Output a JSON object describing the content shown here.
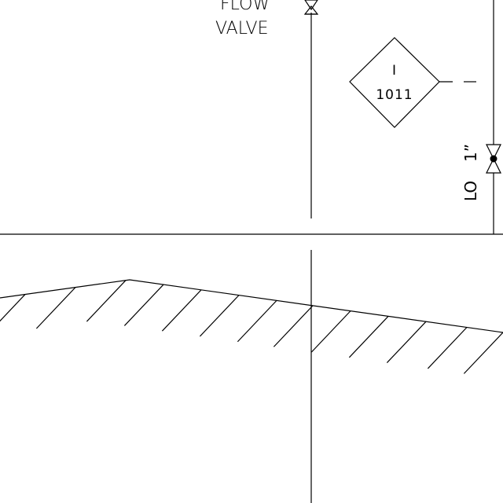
{
  "valve_label": {
    "line1": "FLOW",
    "line2": "VALVE"
  },
  "instrument": {
    "type": "I",
    "number": "1011"
  },
  "lock_valve": {
    "status": "LO",
    "size": "1”"
  }
}
